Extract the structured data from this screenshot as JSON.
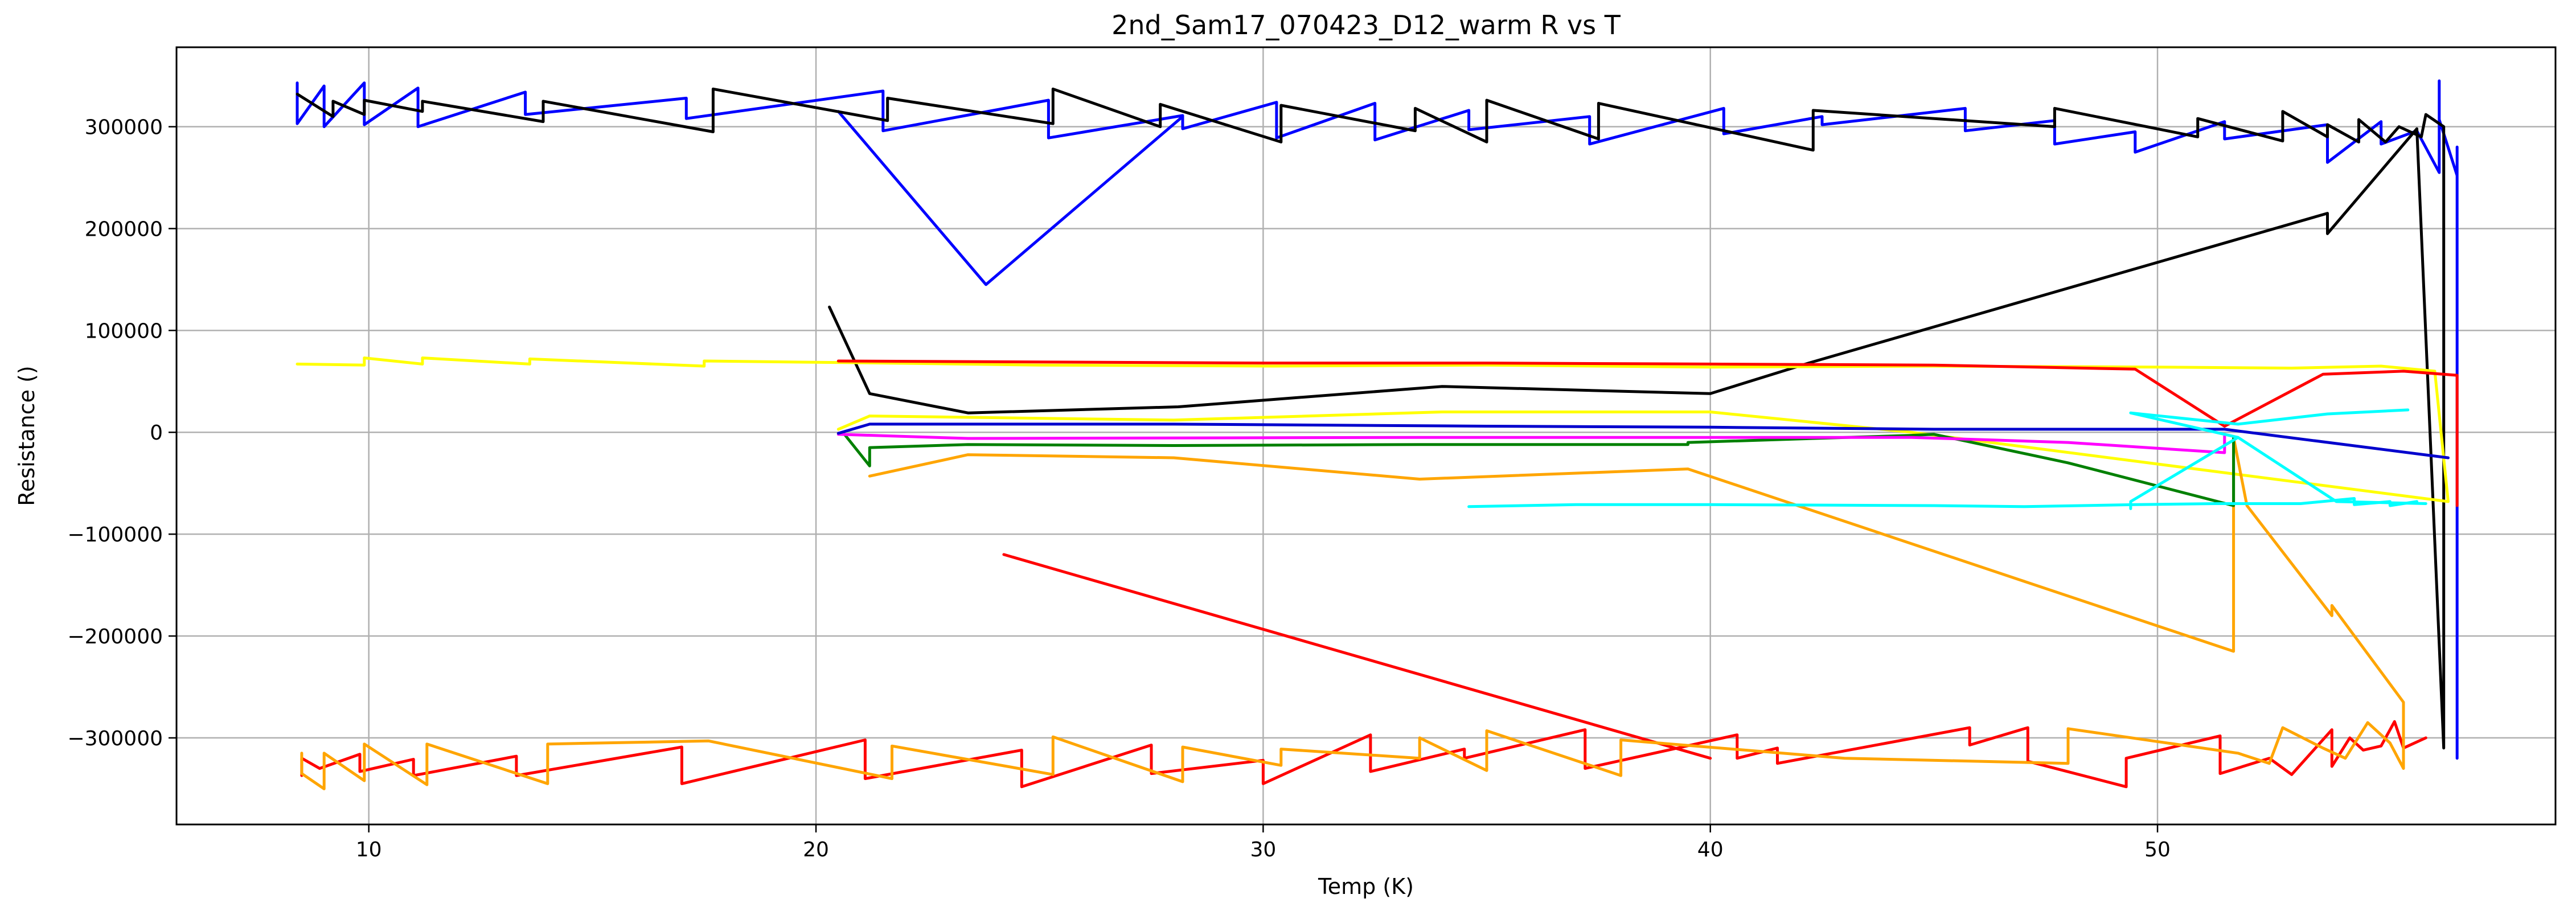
{
  "chart_data": {
    "type": "line",
    "title": "2nd_Sam17_070423_D12_warm R vs T",
    "xlabel": "Temp (K)",
    "ylabel": "Resistance ()",
    "xlim": [
      5.7,
      58.9
    ],
    "ylim": [
      -385000,
      378000
    ],
    "xticks": [
      10,
      20,
      30,
      40,
      50
    ],
    "yticks": [
      -300000,
      -200000,
      -100000,
      0,
      100000,
      200000,
      300000
    ],
    "xtick_labels": [
      "10",
      "20",
      "30",
      "40",
      "50"
    ],
    "ytick_labels": [
      "−300000",
      "−200000",
      "−100000",
      "0",
      "100000",
      "200000",
      "300000"
    ],
    "grid": true,
    "legend": false,
    "series": [
      {
        "color": "#0000ff",
        "points": [
          [
            8.4,
            343000
          ],
          [
            8.4,
            303000
          ],
          [
            9.0,
            340000
          ],
          [
            9.0,
            300000
          ],
          [
            9.9,
            343000
          ],
          [
            9.9,
            302000
          ],
          [
            11.1,
            338000
          ],
          [
            11.1,
            300000
          ],
          [
            13.5,
            334000
          ],
          [
            13.5,
            312000
          ],
          [
            17.1,
            328000
          ],
          [
            17.1,
            308000
          ],
          [
            21.5,
            335000
          ],
          [
            21.5,
            296000
          ],
          [
            25.2,
            326000
          ],
          [
            25.2,
            289000
          ],
          [
            28.2,
            311000
          ],
          [
            28.2,
            298000
          ],
          [
            30.3,
            324000
          ],
          [
            30.3,
            289000
          ],
          [
            32.5,
            323000
          ],
          [
            32.5,
            287000
          ],
          [
            34.6,
            316000
          ],
          [
            34.6,
            297000
          ],
          [
            37.3,
            310000
          ],
          [
            37.3,
            283000
          ],
          [
            40.3,
            318000
          ],
          [
            40.3,
            293000
          ],
          [
            42.5,
            310000
          ],
          [
            42.5,
            302000
          ],
          [
            45.7,
            318000
          ],
          [
            45.7,
            296000
          ],
          [
            47.7,
            306000
          ],
          [
            47.7,
            283000
          ],
          [
            49.5,
            295000
          ],
          [
            49.5,
            275000
          ],
          [
            51.5,
            305000
          ],
          [
            51.5,
            288000
          ],
          [
            53.8,
            302000
          ],
          [
            53.8,
            265000
          ],
          [
            55.0,
            305000
          ],
          [
            55.0,
            283000
          ],
          [
            55.8,
            296000
          ],
          [
            56.3,
            255000
          ],
          [
            56.3,
            345000
          ],
          [
            56.3,
            307000
          ],
          [
            56.7,
            252000
          ],
          [
            56.7,
            280000
          ],
          [
            56.7,
            -320000
          ]
        ]
      },
      {
        "color": "#0000ff",
        "points": [
          [
            20.5,
            315000
          ],
          [
            23.8,
            145000
          ],
          [
            28.2,
            310000
          ]
        ]
      },
      {
        "color": "#000000",
        "points": [
          [
            8.4,
            332000
          ],
          [
            9.2,
            310000
          ],
          [
            9.2,
            325000
          ],
          [
            9.9,
            312000
          ],
          [
            9.9,
            326000
          ],
          [
            11.2,
            315000
          ],
          [
            11.2,
            325000
          ],
          [
            13.9,
            305000
          ],
          [
            13.9,
            325000
          ],
          [
            17.7,
            295000
          ],
          [
            17.7,
            337000
          ],
          [
            21.6,
            306000
          ],
          [
            21.6,
            328000
          ],
          [
            25.3,
            303000
          ],
          [
            25.3,
            337000
          ],
          [
            27.7,
            300000
          ],
          [
            27.7,
            322000
          ],
          [
            30.4,
            285000
          ],
          [
            30.4,
            321000
          ],
          [
            33.4,
            296000
          ],
          [
            33.4,
            318000
          ],
          [
            35.0,
            285000
          ],
          [
            35.0,
            326000
          ],
          [
            37.5,
            288000
          ],
          [
            37.5,
            323000
          ],
          [
            42.3,
            277000
          ],
          [
            42.3,
            316000
          ],
          [
            47.7,
            300000
          ],
          [
            47.7,
            318000
          ],
          [
            50.9,
            290000
          ],
          [
            50.9,
            308000
          ],
          [
            52.8,
            286000
          ],
          [
            52.8,
            315000
          ],
          [
            53.8,
            290000
          ],
          [
            53.8,
            302000
          ],
          [
            54.5,
            285000
          ],
          [
            54.5,
            307000
          ],
          [
            55.1,
            285000
          ],
          [
            55.4,
            300000
          ],
          [
            55.9,
            290000
          ],
          [
            56.0,
            312000
          ],
          [
            56.4,
            300000
          ],
          [
            56.4,
            -310000
          ],
          [
            55.8,
            298000
          ],
          [
            53.8,
            195000
          ],
          [
            53.8,
            215000
          ],
          [
            42.2,
            68000
          ],
          [
            40.0,
            38000
          ],
          [
            34.0,
            45000
          ],
          [
            28.1,
            25000
          ],
          [
            23.4,
            19000
          ],
          [
            21.2,
            38000
          ],
          [
            20.3,
            123000
          ]
        ]
      },
      {
        "color": "#ffff00",
        "points": [
          [
            8.4,
            67000
          ],
          [
            9.9,
            66000
          ],
          [
            9.9,
            73000
          ],
          [
            11.2,
            67000
          ],
          [
            11.2,
            73000
          ],
          [
            13.6,
            67000
          ],
          [
            13.6,
            72000
          ],
          [
            17.5,
            65000
          ],
          [
            17.5,
            70000
          ],
          [
            21.5,
            68000
          ],
          [
            25.0,
            66000
          ],
          [
            30.2,
            65000
          ],
          [
            35.0,
            66000
          ],
          [
            40.0,
            64000
          ],
          [
            45.0,
            65000
          ],
          [
            50.0,
            64000
          ],
          [
            53.0,
            63000
          ],
          [
            55.0,
            65000
          ],
          [
            56.2,
            60000
          ],
          [
            56.5,
            -68000
          ],
          [
            44.5,
            0
          ],
          [
            40.0,
            20000
          ],
          [
            34.0,
            20000
          ],
          [
            28.0,
            12000
          ],
          [
            21.2,
            16000
          ],
          [
            20.5,
            3000
          ]
        ]
      },
      {
        "color": "#ff0000",
        "points": [
          [
            20.5,
            70000
          ],
          [
            25.0,
            69000
          ],
          [
            30.0,
            68000
          ],
          [
            35.0,
            68000
          ],
          [
            40.0,
            67000
          ],
          [
            45.0,
            66000
          ],
          [
            49.5,
            62000
          ],
          [
            51.5,
            6000
          ],
          [
            53.7,
            57000
          ],
          [
            55.5,
            60000
          ],
          [
            56.7,
            56000
          ],
          [
            56.7,
            -72000
          ]
        ]
      },
      {
        "color": "#ff0000",
        "points": [
          [
            8.5,
            -337000
          ],
          [
            8.5,
            -320000
          ],
          [
            8.9,
            -330000
          ],
          [
            9.8,
            -316000
          ],
          [
            9.8,
            -333000
          ],
          [
            11.0,
            -321000
          ],
          [
            11.0,
            -337000
          ],
          [
            13.3,
            -318000
          ],
          [
            13.3,
            -337000
          ],
          [
            17.0,
            -309000
          ],
          [
            17.0,
            -345000
          ],
          [
            21.1,
            -302000
          ],
          [
            21.1,
            -340000
          ],
          [
            24.6,
            -312000
          ],
          [
            24.6,
            -348000
          ],
          [
            27.5,
            -307000
          ],
          [
            27.5,
            -335000
          ],
          [
            30.0,
            -322000
          ],
          [
            30.0,
            -345000
          ],
          [
            32.4,
            -297000
          ],
          [
            32.4,
            -333000
          ],
          [
            34.5,
            -311000
          ],
          [
            34.5,
            -320000
          ],
          [
            37.2,
            -292000
          ],
          [
            37.2,
            -330000
          ],
          [
            40.6,
            -297000
          ],
          [
            40.6,
            -320000
          ],
          [
            41.5,
            -310000
          ],
          [
            41.5,
            -325000
          ],
          [
            45.8,
            -290000
          ],
          [
            45.8,
            -307000
          ],
          [
            47.1,
            -290000
          ],
          [
            47.1,
            -323000
          ],
          [
            49.3,
            -348000
          ],
          [
            49.3,
            -320000
          ],
          [
            51.4,
            -298000
          ],
          [
            51.4,
            -335000
          ],
          [
            52.5,
            -320000
          ],
          [
            53.0,
            -336000
          ],
          [
            53.9,
            -292000
          ],
          [
            53.9,
            -328000
          ],
          [
            54.3,
            -300000
          ],
          [
            54.6,
            -312000
          ],
          [
            55.0,
            -308000
          ],
          [
            55.3,
            -284000
          ],
          [
            55.5,
            -310000
          ],
          [
            56.0,
            -300000
          ]
        ]
      },
      {
        "color": "#ff0000",
        "points": [
          [
            24.2,
            -120000
          ],
          [
            40.0,
            -320000
          ]
        ]
      },
      {
        "color": "#ffa500",
        "points": [
          [
            8.5,
            -315000
          ],
          [
            8.5,
            -335000
          ],
          [
            9.0,
            -350000
          ],
          [
            9.0,
            -315000
          ],
          [
            9.9,
            -342000
          ],
          [
            9.9,
            -306000
          ],
          [
            11.3,
            -346000
          ],
          [
            11.3,
            -306000
          ],
          [
            14.0,
            -345000
          ],
          [
            14.0,
            -306000
          ],
          [
            17.6,
            -303000
          ],
          [
            21.7,
            -340000
          ],
          [
            21.7,
            -308000
          ],
          [
            25.3,
            -336000
          ],
          [
            25.3,
            -299000
          ],
          [
            28.2,
            -343000
          ],
          [
            28.2,
            -309000
          ],
          [
            30.4,
            -327000
          ],
          [
            30.4,
            -311000
          ],
          [
            33.5,
            -320000
          ],
          [
            33.5,
            -300000
          ],
          [
            35.0,
            -332000
          ],
          [
            35.0,
            -293000
          ],
          [
            38.0,
            -337000
          ],
          [
            38.0,
            -302000
          ],
          [
            43.0,
            -320000
          ],
          [
            48.0,
            -325000
          ],
          [
            48.0,
            -291000
          ],
          [
            51.8,
            -315000
          ],
          [
            52.5,
            -325000
          ],
          [
            52.8,
            -290000
          ],
          [
            53.7,
            -310000
          ],
          [
            54.2,
            -320000
          ],
          [
            54.7,
            -285000
          ],
          [
            55.2,
            -305000
          ],
          [
            55.5,
            -330000
          ],
          [
            55.5,
            -265000
          ],
          [
            53.9,
            -170000
          ],
          [
            53.9,
            -180000
          ],
          [
            52.0,
            -72000
          ],
          [
            51.7,
            -5000
          ],
          [
            51.7,
            -215000
          ],
          [
            39.5,
            -36000
          ],
          [
            33.5,
            -46000
          ],
          [
            28.0,
            -25000
          ],
          [
            23.4,
            -22000
          ],
          [
            21.2,
            -43000
          ]
        ]
      },
      {
        "color": "#008000",
        "points": [
          [
            20.6,
            0
          ],
          [
            21.2,
            -33000
          ],
          [
            21.2,
            -15000
          ],
          [
            23.4,
            -12000
          ],
          [
            28.0,
            -13000
          ],
          [
            33.5,
            -12000
          ],
          [
            39.5,
            -12000
          ],
          [
            39.5,
            -10000
          ],
          [
            44.5,
            -3000
          ],
          [
            45.0,
            -2000
          ],
          [
            48.0,
            -30000
          ],
          [
            51.7,
            -72000
          ],
          [
            51.7,
            -5000
          ]
        ]
      },
      {
        "color": "#ff00ff",
        "points": [
          [
            20.5,
            -2000
          ],
          [
            23.4,
            -6000
          ],
          [
            33.5,
            -5000
          ],
          [
            44.5,
            -5000
          ],
          [
            48.0,
            -10000
          ],
          [
            51.5,
            -20000
          ],
          [
            51.5,
            -4000
          ]
        ]
      },
      {
        "color": "#0000cd",
        "points": [
          [
            20.5,
            -1000
          ],
          [
            21.2,
            8000
          ],
          [
            28.0,
            8000
          ],
          [
            35.0,
            6000
          ],
          [
            40.0,
            5000
          ],
          [
            45.0,
            3000
          ],
          [
            51.5,
            3000
          ],
          [
            56.5,
            -25000
          ]
        ]
      },
      {
        "color": "#00ffff",
        "points": [
          [
            34.6,
            -73000
          ],
          [
            37.0,
            -71000
          ],
          [
            40.0,
            -71000
          ],
          [
            45.0,
            -72000
          ],
          [
            47.0,
            -73000
          ],
          [
            49.5,
            -71000
          ],
          [
            51.3,
            -70000
          ],
          [
            53.2,
            -70000
          ],
          [
            54.4,
            -65000
          ],
          [
            54.4,
            -71000
          ],
          [
            55.2,
            -68000
          ],
          [
            55.2,
            -72000
          ],
          [
            55.8,
            -68000
          ]
        ]
      },
      {
        "color": "#00ffff",
        "points": [
          [
            49.4,
            -75000
          ],
          [
            49.4,
            -68000
          ],
          [
            51.8,
            -5000
          ],
          [
            49.4,
            19000
          ],
          [
            51.8,
            8000
          ],
          [
            53.8,
            18000
          ],
          [
            55.6,
            22000
          ]
        ]
      },
      {
        "color": "#00ffff",
        "points": [
          [
            51.8,
            -5000
          ],
          [
            54.0,
            -68000
          ],
          [
            56.0,
            -70000
          ]
        ]
      }
    ]
  }
}
